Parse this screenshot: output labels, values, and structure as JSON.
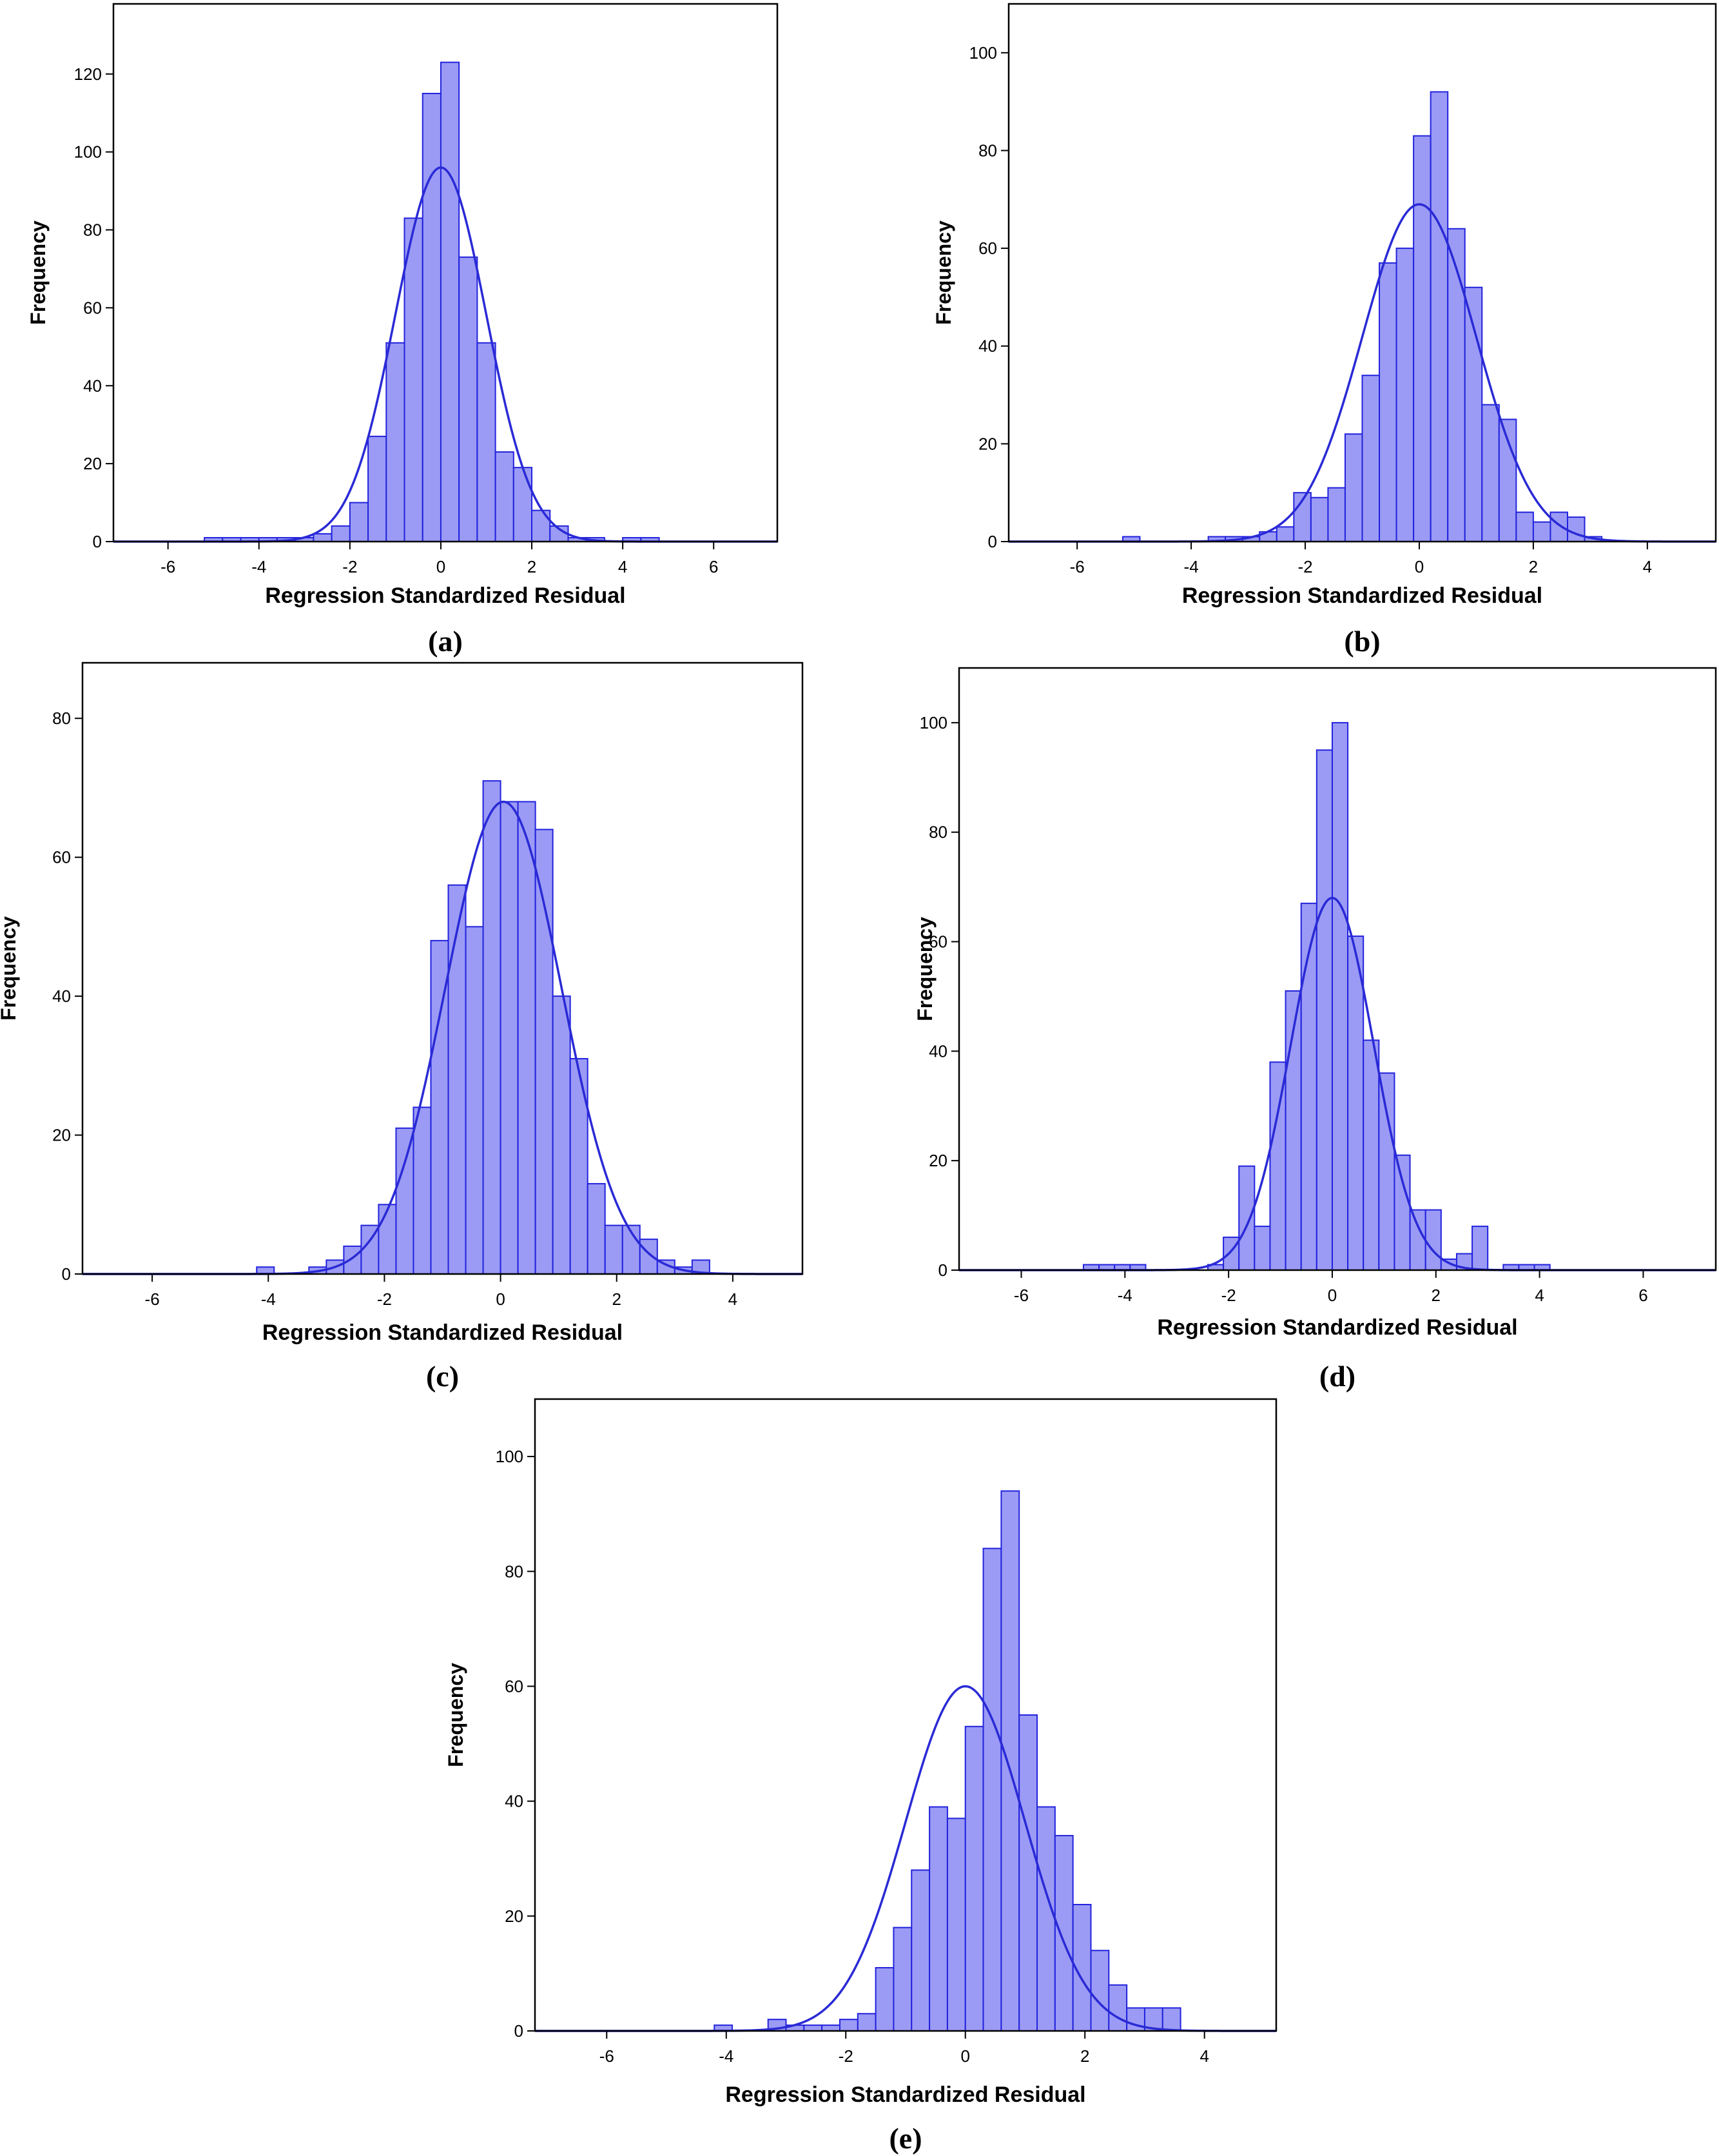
{
  "colors": {
    "bar_fill": "#9b9bf5",
    "bar_stroke": "#2222dd",
    "curve": "#2a2ad6",
    "frame": "#000000"
  },
  "chart_data": [
    {
      "panel": "a",
      "panel_label": "(a)",
      "type": "bar",
      "subtype": "histogram",
      "title": "",
      "xlabel": "Regression Standardized Residual",
      "ylabel": "Frequency",
      "xlim": [
        -7.2,
        7.4
      ],
      "ylim": [
        0,
        138
      ],
      "xticks": [
        -6,
        -4,
        -2,
        0,
        2,
        4,
        6
      ],
      "yticks": [
        0,
        20,
        40,
        60,
        80,
        100,
        120
      ],
      "bin_start": -5.2,
      "bin_width": 0.4,
      "values": [
        1,
        1,
        1,
        1,
        1,
        1,
        2,
        4,
        10,
        27,
        51,
        83,
        115,
        123,
        73,
        51,
        23,
        19,
        8,
        4,
        1,
        1,
        0,
        1,
        1
      ],
      "normal_curve": {
        "mean": 0.0,
        "sd": 1.0,
        "peak": 96
      }
    },
    {
      "panel": "b",
      "panel_label": "(b)",
      "type": "bar",
      "subtype": "histogram",
      "title": "",
      "xlabel": "Regression Standardized Residual",
      "ylabel": "Frequency",
      "xlim": [
        -7.2,
        5.2
      ],
      "ylim": [
        0,
        110
      ],
      "xticks": [
        -6,
        -4,
        -2,
        0,
        2,
        4
      ],
      "yticks": [
        0,
        20,
        40,
        60,
        80,
        100
      ],
      "bin_start": -5.2,
      "bin_width": 0.3,
      "values": [
        1,
        0,
        0,
        0,
        0,
        1,
        1,
        1,
        2,
        3,
        10,
        9,
        11,
        22,
        34,
        57,
        60,
        83,
        92,
        64,
        52,
        28,
        25,
        6,
        4,
        6,
        5,
        1
      ],
      "normal_curve": {
        "mean": 0.0,
        "sd": 1.0,
        "peak": 69
      }
    },
    {
      "panel": "c",
      "panel_label": "(c)",
      "type": "bar",
      "subtype": "histogram",
      "title": "",
      "xlabel": "Regression Standardized Residual",
      "ylabel": "Frequency",
      "xlim": [
        -7.2,
        5.2
      ],
      "ylim": [
        0,
        88
      ],
      "xticks": [
        -6,
        -4,
        -2,
        0,
        2,
        4
      ],
      "yticks": [
        0,
        20,
        40,
        60,
        80
      ],
      "bin_start": -4.2,
      "bin_width": 0.3,
      "values": [
        1,
        0,
        0,
        1,
        2,
        4,
        7,
        10,
        21,
        24,
        48,
        56,
        50,
        71,
        68,
        68,
        64,
        40,
        31,
        13,
        7,
        7,
        5,
        2,
        1,
        2
      ],
      "normal_curve": {
        "mean": 0.05,
        "sd": 1.0,
        "peak": 68
      }
    },
    {
      "panel": "d",
      "panel_label": "(d)",
      "type": "bar",
      "subtype": "histogram",
      "title": "",
      "xlabel": "Regression Standardized Residual",
      "ylabel": "Frequency",
      "xlim": [
        -7.2,
        7.4
      ],
      "ylim": [
        0,
        110
      ],
      "xticks": [
        -6,
        -4,
        -2,
        0,
        2,
        4,
        6
      ],
      "yticks": [
        0,
        20,
        40,
        60,
        80,
        100
      ],
      "bin_start": -4.8,
      "bin_width": 0.3,
      "values": [
        1,
        1,
        1,
        1,
        0,
        0,
        0,
        0,
        1,
        6,
        19,
        8,
        38,
        51,
        67,
        95,
        100,
        61,
        42,
        36,
        21,
        11,
        11,
        2,
        3,
        8,
        0,
        1,
        1,
        1
      ],
      "normal_curve": {
        "mean": 0.0,
        "sd": 0.8,
        "peak": 68
      }
    },
    {
      "panel": "e",
      "panel_label": "(e)",
      "type": "bar",
      "subtype": "histogram",
      "title": "",
      "xlabel": "Regression Standardized Residual",
      "ylabel": "Frequency",
      "xlim": [
        -7.2,
        5.2
      ],
      "ylim": [
        0,
        110
      ],
      "xticks": [
        -6,
        -4,
        -2,
        0,
        2,
        4
      ],
      "yticks": [
        0,
        20,
        40,
        60,
        80,
        100
      ],
      "bin_start": -4.2,
      "bin_width": 0.3,
      "values": [
        1,
        0,
        0,
        2,
        1,
        1,
        1,
        2,
        3,
        11,
        18,
        28,
        39,
        37,
        53,
        84,
        94,
        55,
        39,
        34,
        22,
        14,
        8,
        4,
        4,
        4
      ],
      "normal_curve": {
        "mean": 0.0,
        "sd": 1.0,
        "peak": 60
      }
    }
  ]
}
